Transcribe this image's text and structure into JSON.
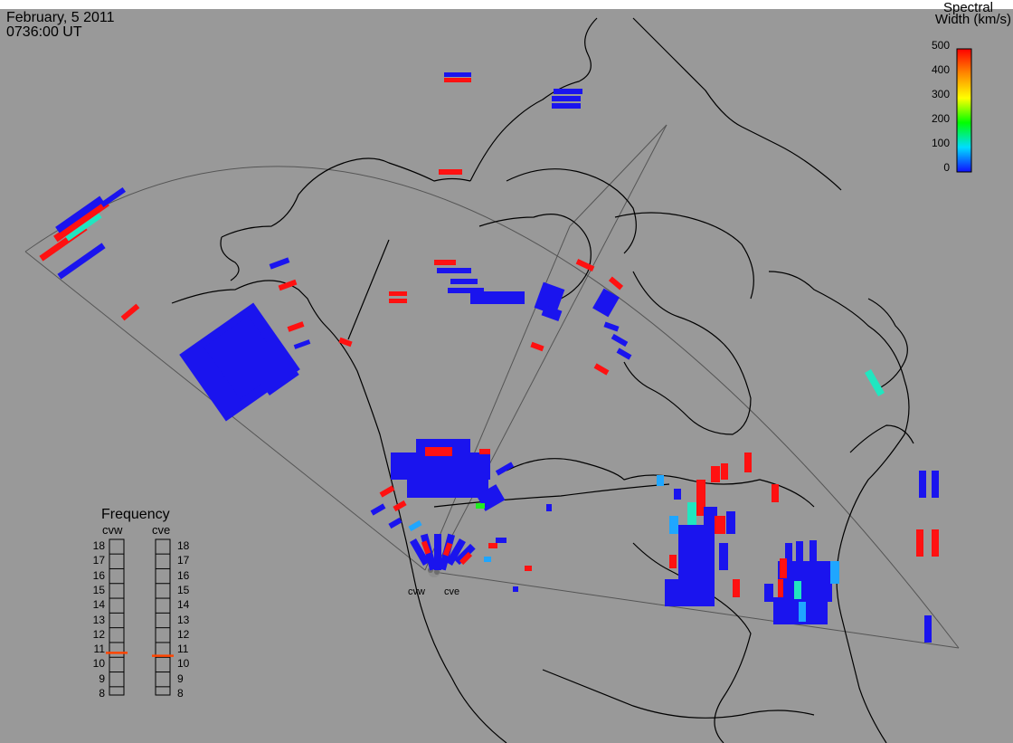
{
  "header": {
    "date": "February, 5 2011",
    "time": "0736:00 UT"
  },
  "colorbar": {
    "title_line1": "Spectral",
    "title_line2": "Width (km/s)",
    "ticks": [
      "500",
      "400",
      "300",
      "200",
      "100",
      "0"
    ],
    "range": [
      0,
      500
    ],
    "colors": [
      "#1010ff",
      "#00ddff",
      "#00ff00",
      "#ffff00",
      "#ff8800",
      "#ff0000"
    ]
  },
  "frequency": {
    "title": "Frequency",
    "left_label": "cvw",
    "right_label": "cve",
    "ticks": [
      "18",
      "17",
      "16",
      "15",
      "14",
      "13",
      "12",
      "11",
      "10",
      "9",
      "8"
    ],
    "cvw_value": 10.8,
    "cve_value": 10.6,
    "marker_color": "#ff4400"
  },
  "radars": {
    "west": "cvw",
    "east": "cve"
  },
  "colors": {
    "background": "#999999",
    "blue": "#1a14ee",
    "red": "#ff1111",
    "cyan": "#21e6c0",
    "lightblue": "#1fa6ff",
    "green": "#20ee20"
  }
}
